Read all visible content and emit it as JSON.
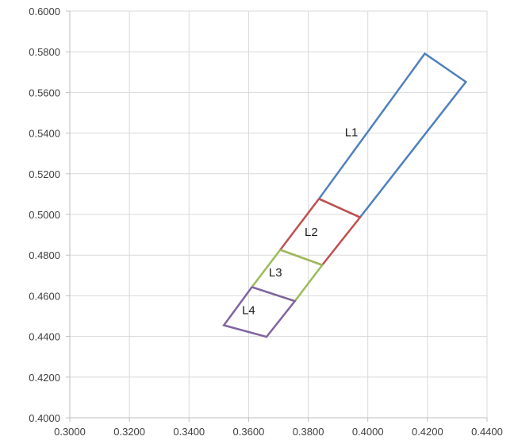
{
  "chart_data": {
    "type": "line",
    "xlim": [
      0.3,
      0.44
    ],
    "ylim": [
      0.4,
      0.6
    ],
    "x_ticks": [
      "0.3000",
      "0.3200",
      "0.3400",
      "0.3600",
      "0.3800",
      "0.4000",
      "0.4200",
      "0.4400"
    ],
    "y_ticks": [
      "0.4000",
      "0.4200",
      "0.4400",
      "0.4600",
      "0.4800",
      "0.5000",
      "0.5200",
      "0.5400",
      "0.5600",
      "0.5800",
      "0.6000"
    ],
    "grid": true,
    "gridline_color": "#d9d9d9",
    "axis_color": "#bfbfbf",
    "series": [
      {
        "name": "L1",
        "color": "#4f81bd",
        "label_position": [
          0.3945,
          0.5385
        ],
        "points": [
          [
            0.3836,
            0.5077
          ],
          [
            0.4191,
            0.5791
          ],
          [
            0.4329,
            0.5652
          ],
          [
            0.3974,
            0.4986
          ],
          [
            0.3836,
            0.5077
          ]
        ]
      },
      {
        "name": "L2",
        "color": "#c0504d",
        "label_position": [
          0.381,
          0.4895
        ],
        "points": [
          [
            0.3836,
            0.5077
          ],
          [
            0.3974,
            0.4986
          ],
          [
            0.3847,
            0.4751
          ],
          [
            0.3706,
            0.4826
          ],
          [
            0.3836,
            0.5077
          ]
        ]
      },
      {
        "name": "L3",
        "color": "#9bbb59",
        "label_position": [
          0.369,
          0.4695
        ],
        "points": [
          [
            0.3706,
            0.4826
          ],
          [
            0.3847,
            0.4751
          ],
          [
            0.3755,
            0.4574
          ],
          [
            0.3611,
            0.4643
          ],
          [
            0.3706,
            0.4826
          ]
        ]
      },
      {
        "name": "L4",
        "color": "#8064a2",
        "label_position": [
          0.36,
          0.4509
        ],
        "points": [
          [
            0.3611,
            0.4643
          ],
          [
            0.3755,
            0.4574
          ],
          [
            0.366,
            0.4398
          ],
          [
            0.3517,
            0.4455
          ],
          [
            0.3611,
            0.4643
          ]
        ]
      }
    ]
  }
}
